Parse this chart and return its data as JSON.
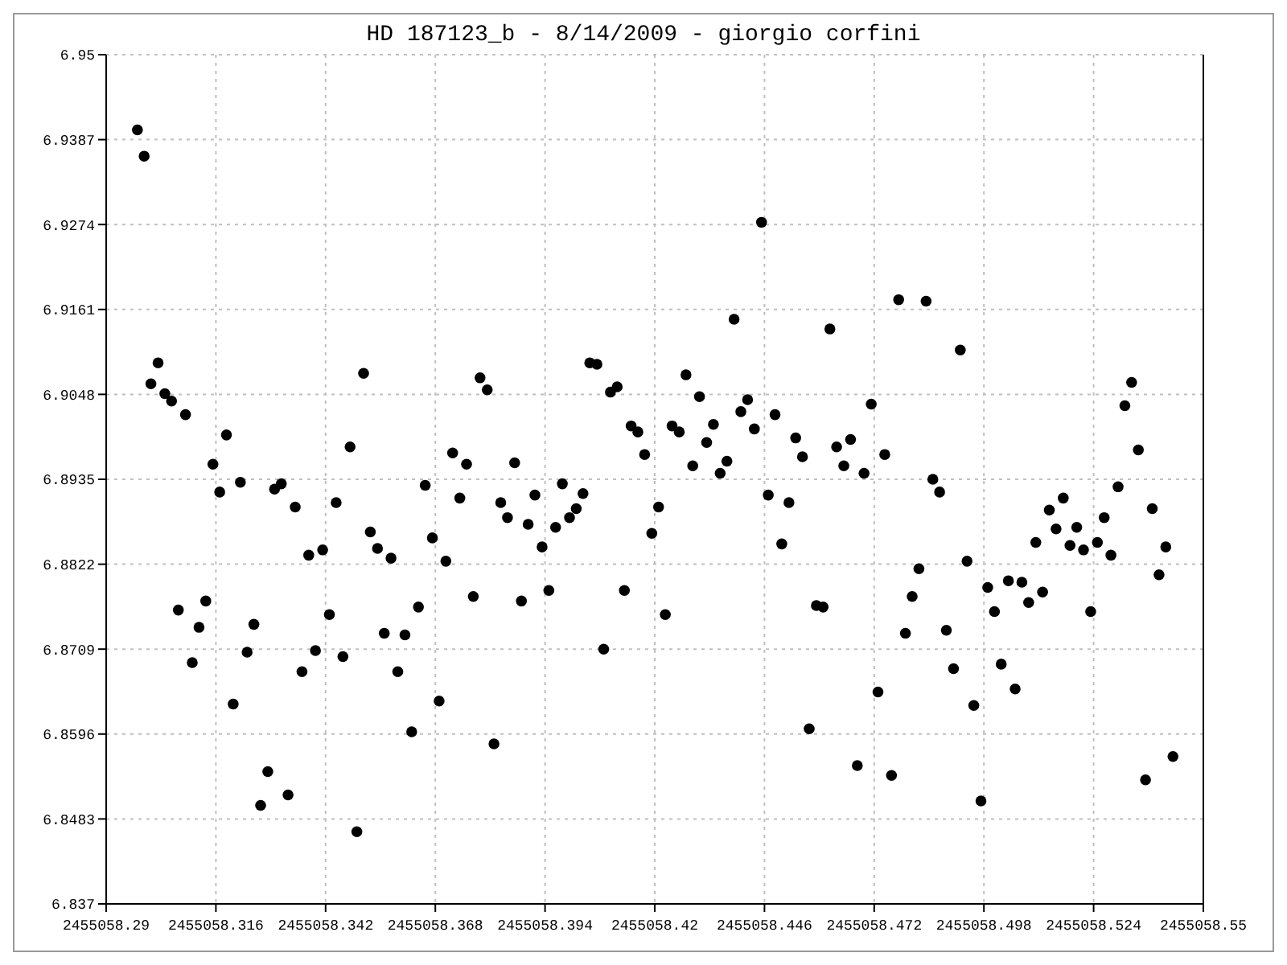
{
  "chart_data": {
    "type": "scatter",
    "title": "HD 187123_b - 8/14/2009 - giorgio corfini",
    "x": [
      2455058.2974,
      2455058.299,
      2455058.3006,
      2455058.3023,
      2455058.3039,
      2455058.3055,
      2455058.3071,
      2455058.3088,
      2455058.3104,
      2455058.312,
      2455058.3136,
      2455058.3153,
      2455058.3169,
      2455058.3185,
      2455058.3201,
      2455058.3218,
      2455058.3234,
      2455058.325,
      2455058.3266,
      2455058.3283,
      2455058.3299,
      2455058.3315,
      2455058.3331,
      2455058.3348,
      2455058.3364,
      2455058.338,
      2455058.3396,
      2455058.3413,
      2455058.3429,
      2455058.3445,
      2455058.3461,
      2455058.3478,
      2455058.3494,
      2455058.351,
      2455058.3526,
      2455058.3543,
      2455058.3559,
      2455058.3575,
      2455058.3591,
      2455058.3608,
      2455058.3624,
      2455058.364,
      2455058.3656,
      2455058.3673,
      2455058.3689,
      2455058.3705,
      2455058.3721,
      2455058.3738,
      2455058.3754,
      2455058.377,
      2455058.3786,
      2455058.3803,
      2455058.3819,
      2455058.3835,
      2455058.3851,
      2455058.3868,
      2455058.3884,
      2455058.39,
      2455058.3916,
      2455058.3933,
      2455058.3949,
      2455058.3965,
      2455058.3981,
      2455058.3998,
      2455058.4014,
      2455058.403,
      2455058.4046,
      2455058.4063,
      2455058.4079,
      2455058.4095,
      2455058.4111,
      2455058.4128,
      2455058.4144,
      2455058.416,
      2455058.4176,
      2455058.4193,
      2455058.4209,
      2455058.4225,
      2455058.4241,
      2455058.4258,
      2455058.4274,
      2455058.429,
      2455058.4306,
      2455058.4323,
      2455058.4339,
      2455058.4355,
      2455058.4371,
      2455058.4388,
      2455058.4404,
      2455058.442,
      2455058.4436,
      2455058.4453,
      2455058.4469,
      2455058.4485,
      2455058.4501,
      2455058.4518,
      2455058.4534,
      2455058.455,
      2455058.4566,
      2455058.4583,
      2455058.4599,
      2455058.4615,
      2455058.4631,
      2455058.4648,
      2455058.4664,
      2455058.468,
      2455058.4696,
      2455058.4713,
      2455058.4729,
      2455058.4745,
      2455058.4761,
      2455058.4778,
      2455058.4794,
      2455058.481,
      2455058.4826,
      2455058.4843,
      2455058.4859,
      2455058.4875,
      2455058.4891,
      2455058.4908,
      2455058.4924,
      2455058.494,
      2455058.4956,
      2455058.4973,
      2455058.4989,
      2455058.5005,
      2455058.5021,
      2455058.5038,
      2455058.5054,
      2455058.507,
      2455058.5086,
      2455058.5103,
      2455058.5119,
      2455058.5135,
      2455058.5151,
      2455058.5168,
      2455058.5184,
      2455058.52,
      2455058.5216,
      2455058.5233,
      2455058.5249,
      2455058.5265,
      2455058.5281,
      2455058.5298,
      2455058.5314,
      2455058.533,
      2455058.5346,
      2455058.5363,
      2455058.5379,
      2455058.5395,
      2455058.5411,
      2455058.5428
    ],
    "series": [
      {
        "color": "#000000",
        "values": [
          6.94,
          6.9365,
          6.9062,
          6.909,
          6.9049,
          6.9039,
          6.8761,
          6.9021,
          6.8691,
          6.8738,
          6.8773,
          6.8955,
          6.8918,
          6.8994,
          6.8636,
          6.8931,
          6.8705,
          6.8742,
          6.8501,
          6.8546,
          6.8922,
          6.8929,
          6.8515,
          6.8898,
          6.8679,
          6.8834,
          6.8707,
          6.8841,
          6.8755,
          6.8904,
          6.8699,
          6.8978,
          6.8466,
          6.9076,
          6.8865,
          6.8843,
          6.873,
          6.883,
          6.8679,
          6.8728,
          6.8599,
          6.8765,
          6.8927,
          6.8857,
          6.864,
          6.8826,
          6.897,
          6.891,
          6.8955,
          6.8779,
          6.907,
          6.9054,
          6.8583,
          6.8904,
          6.8884,
          6.8957,
          6.8773,
          6.8875,
          6.8914,
          6.8845,
          6.8787,
          6.8871,
          6.8929,
          6.8884,
          6.8896,
          6.8916,
          6.909,
          6.9088,
          6.8709,
          6.9051,
          6.9058,
          6.8787,
          6.9006,
          6.8998,
          6.8968,
          6.8863,
          6.8898,
          6.8755,
          6.9006,
          6.8998,
          6.9074,
          6.8953,
          6.9045,
          6.8984,
          6.9008,
          6.8943,
          6.8959,
          6.9148,
          6.9025,
          6.9041,
          6.9002,
          6.9277,
          6.8914,
          6.9021,
          6.8849,
          6.8904,
          6.899,
          6.8965,
          6.8603,
          6.8767,
          6.8765,
          6.9135,
          6.8978,
          6.8953,
          6.8988,
          6.8554,
          6.8943,
          6.9035,
          6.8652,
          6.8968,
          6.8541,
          6.9174,
          6.873,
          6.8779,
          6.8816,
          6.9172,
          6.8935,
          6.8918,
          6.8734,
          6.8683,
          6.9107,
          6.8826,
          6.8634,
          6.8507,
          6.8791,
          6.8759,
          6.8689,
          6.88,
          6.8656,
          6.8798,
          6.8771,
          6.8851,
          6.8785,
          6.8894,
          6.8869,
          6.891,
          6.8847,
          6.8871,
          6.8841,
          6.8759,
          6.8851,
          6.8884,
          6.8834,
          6.8925,
          6.9033,
          6.9064,
          6.8974,
          6.8535,
          6.8896,
          6.8808,
          6.8845,
          6.8566
        ]
      }
    ],
    "xlim": [
      2455058.29,
      2455058.55
    ],
    "xticks": [
      2455058.29,
      2455058.316,
      2455058.342,
      2455058.368,
      2455058.394,
      2455058.42,
      2455058.446,
      2455058.472,
      2455058.498,
      2455058.524,
      2455058.55
    ],
    "ylim": [
      6.837,
      6.95
    ],
    "yticks": [
      6.837,
      6.8483,
      6.8596,
      6.8709,
      6.8822,
      6.8935,
      6.9048,
      6.9161,
      6.9274,
      6.9387,
      6.95
    ],
    "grid": true,
    "marker": "circle"
  }
}
